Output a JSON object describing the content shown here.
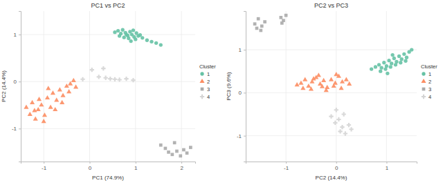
{
  "chart_data": [
    {
      "type": "scatter",
      "title": "PC1 vs PC2",
      "x_label": "PC1 (74.9%)",
      "y_label": "PC2 (14.4%)",
      "legend_title": "Cluster",
      "legend": "right",
      "grid": true,
      "xlim": [
        -1.5,
        2.3
      ],
      "xticks": [
        -1,
        0,
        1,
        2
      ],
      "ylim": [
        -1.7,
        1.5
      ],
      "yticks": [
        -1,
        0,
        1
      ],
      "series": [
        {
          "name": "1",
          "color": "#66c2a5",
          "marker": "circle",
          "x": [
            0.55,
            0.62,
            0.68,
            0.72,
            0.78,
            0.83,
            0.88,
            0.92,
            0.97,
            1.02,
            1.06,
            1.1,
            0.75,
            0.85,
            0.95,
            1.0,
            0.65,
            1.15,
            1.25,
            1.35,
            1.45,
            1.55,
            0.9,
            0.8
          ],
          "values": [
            1.05,
            1.08,
            1.02,
            1.1,
            1.04,
            0.98,
            1.06,
            1.0,
            0.95,
            1.03,
            0.97,
            0.99,
            0.94,
            0.92,
            1.09,
            0.9,
            0.97,
            0.93,
            0.88,
            0.85,
            0.82,
            0.78,
            0.86,
            1.0
          ]
        },
        {
          "name": "2",
          "color": "#fc8d62",
          "marker": "triangle",
          "x": [
            -1.38,
            -1.3,
            -1.25,
            -1.18,
            -1.12,
            -1.05,
            -0.98,
            -0.92,
            -0.85,
            -0.8,
            -0.72,
            -0.65,
            -0.58,
            -0.5,
            -0.42,
            -0.35,
            -1.2,
            -1.0,
            -0.9,
            -0.75,
            -0.6,
            -0.45,
            -1.1,
            -0.3
          ],
          "values": [
            -0.55,
            -0.7,
            -0.45,
            -0.8,
            -0.6,
            -0.5,
            -0.72,
            -0.35,
            -0.55,
            -0.25,
            -0.4,
            -0.18,
            -0.3,
            -0.1,
            -0.05,
            0.02,
            -0.62,
            -0.85,
            -0.15,
            -0.6,
            -0.45,
            -0.22,
            -0.38,
            -0.12
          ]
        },
        {
          "name": "3",
          "color": "#aaaaaa",
          "marker": "square",
          "x": [
            1.55,
            1.65,
            1.72,
            1.8,
            1.9,
            1.98,
            2.05,
            2.12,
            2.2,
            1.85
          ],
          "values": [
            -1.35,
            -1.42,
            -1.5,
            -1.55,
            -1.48,
            -1.58,
            -1.45,
            -1.52,
            -1.4,
            -1.3
          ]
        },
        {
          "name": "4",
          "color": "#d4d4d4",
          "marker": "cross",
          "x": [
            -0.15,
            0.05,
            0.2,
            0.35,
            0.45,
            0.55,
            0.65,
            0.8,
            0.95,
            0.3
          ],
          "values": [
            0.05,
            0.25,
            0.1,
            0.08,
            0.06,
            0.05,
            0.04,
            0.06,
            0.03,
            0.28
          ]
        }
      ]
    },
    {
      "type": "scatter",
      "title": "PC2 vs PC3",
      "x_label": "PC2 (14.4%)",
      "y_label": "PC3 (9.6%)",
      "legend_title": "Cluster",
      "legend": "right",
      "grid": true,
      "xlim": [
        -1.8,
        1.6
      ],
      "xticks": [
        -1,
        0,
        1
      ],
      "ylim": [
        -1.6,
        1.9
      ],
      "yticks": [
        -1,
        0,
        1
      ],
      "series": [
        {
          "name": "1",
          "color": "#66c2a5",
          "marker": "circle",
          "x": [
            0.7,
            0.78,
            0.85,
            0.9,
            0.95,
            1.0,
            1.05,
            1.1,
            1.15,
            1.2,
            1.25,
            1.3,
            1.35,
            1.4,
            1.45,
            1.5,
            0.88,
            0.98,
            1.08,
            1.18,
            1.28,
            1.38,
            1.12,
            1.02
          ],
          "values": [
            0.55,
            0.6,
            0.65,
            0.58,
            0.7,
            0.62,
            0.75,
            0.68,
            0.8,
            0.72,
            0.85,
            0.78,
            0.9,
            0.82,
            0.95,
            1.0,
            0.5,
            0.55,
            0.6,
            0.65,
            0.7,
            0.74,
            0.88,
            0.45
          ]
        },
        {
          "name": "2",
          "color": "#fc8d62",
          "marker": "triangle",
          "x": [
            -0.78,
            -0.7,
            -0.62,
            -0.55,
            -0.48,
            -0.4,
            -0.32,
            -0.25,
            -0.18,
            -0.1,
            -0.02,
            0.05,
            0.12,
            0.2,
            0.26,
            -0.66,
            -0.5,
            -0.35,
            -0.2,
            -0.05,
            0.1,
            -0.45,
            -0.28,
            0.0
          ],
          "values": [
            0.18,
            0.22,
            0.3,
            0.15,
            0.25,
            0.35,
            0.2,
            0.28,
            0.12,
            0.3,
            0.22,
            0.38,
            0.25,
            0.3,
            0.2,
            0.1,
            0.08,
            0.4,
            0.05,
            0.15,
            0.1,
            0.32,
            0.14,
            0.42
          ]
        },
        {
          "name": "3",
          "color": "#aaaaaa",
          "marker": "square",
          "x": [
            -1.62,
            -1.55,
            -1.48,
            -1.42,
            -1.1,
            -1.05,
            -1.0,
            -1.5,
            -1.58,
            -1.08
          ],
          "values": [
            1.6,
            1.72,
            1.55,
            1.65,
            1.75,
            1.68,
            1.8,
            1.45,
            1.5,
            1.62
          ]
        },
        {
          "name": "4",
          "color": "#d4d4d4",
          "marker": "cross",
          "x": [
            -0.1,
            -0.02,
            0.05,
            0.12,
            0.18,
            0.25,
            0.3,
            0.0,
            0.15,
            0.08
          ],
          "values": [
            -0.55,
            -0.7,
            -0.62,
            -0.8,
            -0.95,
            -0.75,
            -0.85,
            -0.4,
            -0.5,
            -0.9
          ]
        }
      ]
    }
  ]
}
